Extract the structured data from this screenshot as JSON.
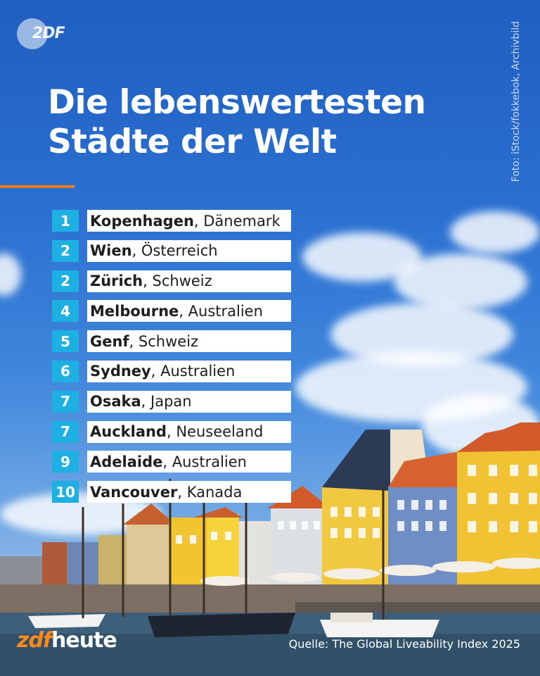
{
  "logo": {
    "text": "2DF"
  },
  "credit": "Foto: iStock/fokkebok, Archivbild",
  "title": {
    "line1": "Die lebenswertesten",
    "line2": "Städte der Welt"
  },
  "ranking": [
    {
      "rank": "1",
      "city": "Kopenhagen",
      "country": ", Dänemark"
    },
    {
      "rank": "2",
      "city": "Wien",
      "country": ", Österreich"
    },
    {
      "rank": "2",
      "city": "Zürich",
      "country": ", Schweiz"
    },
    {
      "rank": "4",
      "city": "Melbourne",
      "country": ", Australien"
    },
    {
      "rank": "5",
      "city": "Genf",
      "country": ", Schweiz"
    },
    {
      "rank": "6",
      "city": "Sydney",
      "country": ", Australien"
    },
    {
      "rank": "7",
      "city": "Osaka",
      "country": ", Japan"
    },
    {
      "rank": "7",
      "city": "Auckland",
      "country": ", Neuseeland"
    },
    {
      "rank": "9",
      "city": "Adelaide",
      "country": ", Australien"
    },
    {
      "rank": "10",
      "city": "Vancouver",
      "country": ", Kanada"
    }
  ],
  "brand": {
    "prefix": "zdf",
    "suffix": "heute"
  },
  "source": "Quelle:  The Global Liveability Index 2025",
  "colors": {
    "accent_rank": "#1fb0e3",
    "accent_line": "#f07d1d",
    "sky": "#2a6fd0"
  }
}
